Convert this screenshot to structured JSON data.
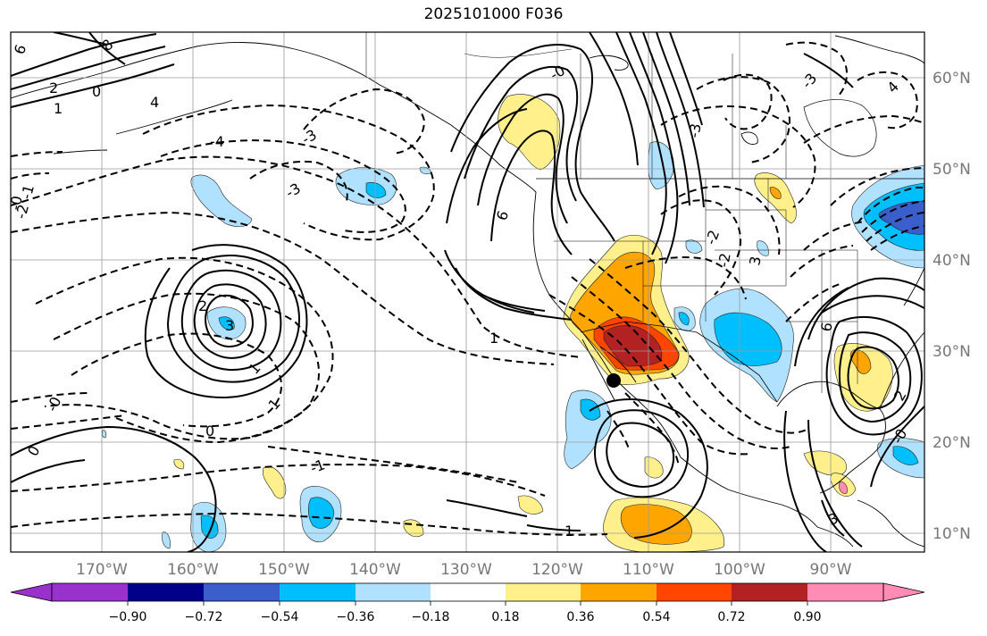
{
  "title": "2025101000 F036",
  "longitude_labels": [
    "170°W",
    "160°W",
    "150°W",
    "140°W",
    "130°W",
    "120°W",
    "110°W",
    "100°W",
    "90°W"
  ],
  "latitude_labels": [
    "60°N",
    "50°N",
    "40°N",
    "30°N",
    "20°N",
    "10°N"
  ],
  "colorbar": {
    "tick_labels": [
      "−0.90",
      "−0.72",
      "−0.54",
      "−0.36",
      "−0.18",
      "0.18",
      "0.36",
      "0.54",
      "0.72",
      "0.90"
    ],
    "colors": [
      "#9932cc",
      "#00008b",
      "#3a5fcd",
      "#00bfff",
      "#b0e2ff",
      "#ffffff",
      "#fff08c",
      "#ffa500",
      "#ff4500",
      "#b22222",
      "#ff8cb4"
    ]
  },
  "contour_labels": [
    "6",
    "2",
    "8",
    "4",
    "1",
    "0",
    "-4",
    "-3",
    "-2",
    "-1",
    "-0",
    "3",
    "2",
    "1",
    "-0",
    "0",
    "-1",
    "-3",
    "1",
    "0",
    "1",
    "-0",
    "6",
    "-3",
    "3",
    "-2",
    "-2",
    "-3",
    "4",
    "6",
    "2",
    "-0",
    "3",
    "1"
  ],
  "marker": "black dot"
}
